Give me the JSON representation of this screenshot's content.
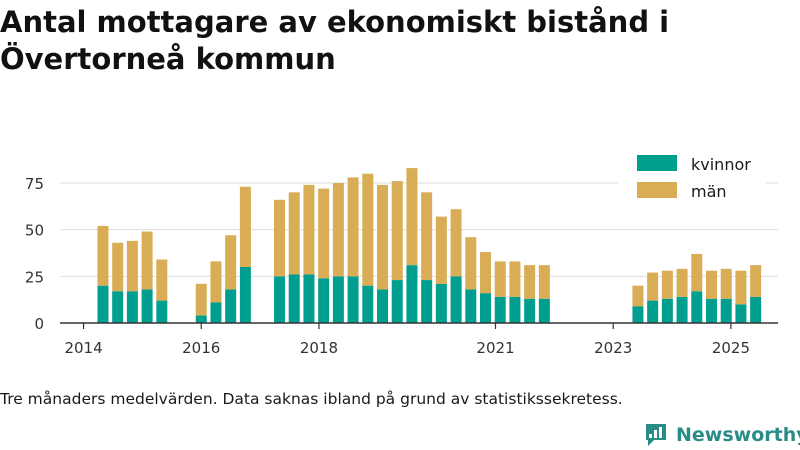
{
  "title": "Antal mottagare av ekonomiskt bistånd i Övertorneå kommun",
  "note": "Tre månaders medelvärden. Data saknas ibland på grund av statistikssekretess.",
  "brand": "Newsworthy",
  "colors": {
    "kvinnor": "#009e8f",
    "man": "#d9ad56",
    "grid": "#dddddd",
    "axis": "#333333",
    "brand": "#2a8c86"
  },
  "chart_data": {
    "type": "bar",
    "stacked": true,
    "x_unit": "year",
    "xlim": [
      2013.6,
      2025.8
    ],
    "ylim": [
      0,
      90
    ],
    "yticks": [
      0,
      25,
      50,
      75
    ],
    "xticks": [
      2014,
      2016,
      2018,
      2021,
      2023,
      2025
    ],
    "grid": true,
    "legend_position": "top-right",
    "title": "",
    "xlabel": "",
    "ylabel": "",
    "x": [
      2014.33,
      2014.58,
      2014.83,
      2015.08,
      2015.33,
      2016.0,
      2016.25,
      2016.5,
      2016.75,
      2017.33,
      2017.58,
      2017.83,
      2018.08,
      2018.33,
      2018.58,
      2018.83,
      2019.08,
      2019.33,
      2019.58,
      2019.83,
      2020.08,
      2020.33,
      2020.58,
      2020.83,
      2021.08,
      2021.33,
      2021.58,
      2021.83,
      2023.42,
      2023.67,
      2023.92,
      2024.17,
      2024.42,
      2024.67,
      2024.92,
      2025.17,
      2025.42
    ],
    "series": [
      {
        "name": "kvinnor",
        "values": [
          20,
          17,
          17,
          18,
          12,
          4,
          11,
          18,
          30,
          25,
          26,
          26,
          24,
          25,
          25,
          20,
          18,
          23,
          31,
          23,
          21,
          25,
          18,
          16,
          14,
          14,
          13,
          13,
          9,
          12,
          13,
          14,
          17,
          13,
          13,
          10,
          14
        ]
      },
      {
        "name": "män",
        "values": [
          32,
          26,
          27,
          31,
          22,
          17,
          22,
          29,
          43,
          41,
          44,
          48,
          48,
          50,
          53,
          60,
          56,
          53,
          52,
          47,
          36,
          36,
          28,
          22,
          19,
          19,
          18,
          18,
          11,
          15,
          15,
          15,
          20,
          15,
          16,
          18,
          17
        ]
      }
    ]
  }
}
